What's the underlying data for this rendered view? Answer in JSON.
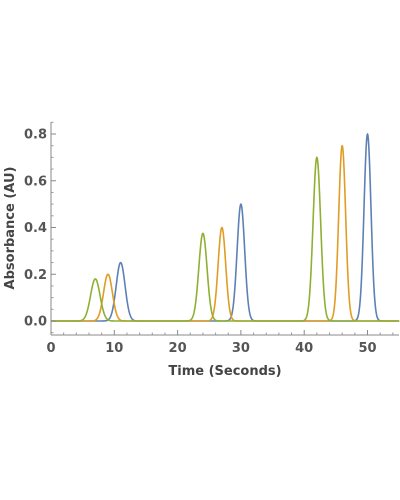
{
  "chart_data": {
    "type": "line",
    "title": "",
    "xlabel": "Time  (Seconds)",
    "ylabel": "Absorbance (AU)",
    "xlim": [
      0,
      55
    ],
    "ylim": [
      -0.06,
      0.86
    ],
    "x_ticks": [
      0,
      10,
      20,
      30,
      40,
      50
    ],
    "x_tick_labels": [
      "0",
      "10",
      "20",
      "30",
      "40",
      "50"
    ],
    "y_ticks": [
      0.0,
      0.2,
      0.4,
      0.6,
      0.8
    ],
    "y_tick_labels": [
      "0.0",
      "0.2",
      "0.4",
      "0.6",
      "0.8"
    ],
    "grid": false,
    "legend": "none",
    "series": [
      {
        "color": "#5e81b5",
        "peaks": [
          {
            "center": 11,
            "height": 0.25,
            "sigma": 0.7
          },
          {
            "center": 30,
            "height": 0.5,
            "sigma": 0.6
          },
          {
            "center": 50,
            "height": 0.8,
            "sigma": 0.55
          }
        ]
      },
      {
        "color": "#e19c24",
        "peaks": [
          {
            "center": 9,
            "height": 0.2,
            "sigma": 0.7
          },
          {
            "center": 27,
            "height": 0.4,
            "sigma": 0.6
          },
          {
            "center": 46,
            "height": 0.75,
            "sigma": 0.55
          }
        ]
      },
      {
        "color": "#8fb032",
        "peaks": [
          {
            "center": 7,
            "height": 0.18,
            "sigma": 0.75
          },
          {
            "center": 24,
            "height": 0.375,
            "sigma": 0.65
          },
          {
            "center": 42,
            "height": 0.7,
            "sigma": 0.6
          }
        ]
      }
    ]
  }
}
